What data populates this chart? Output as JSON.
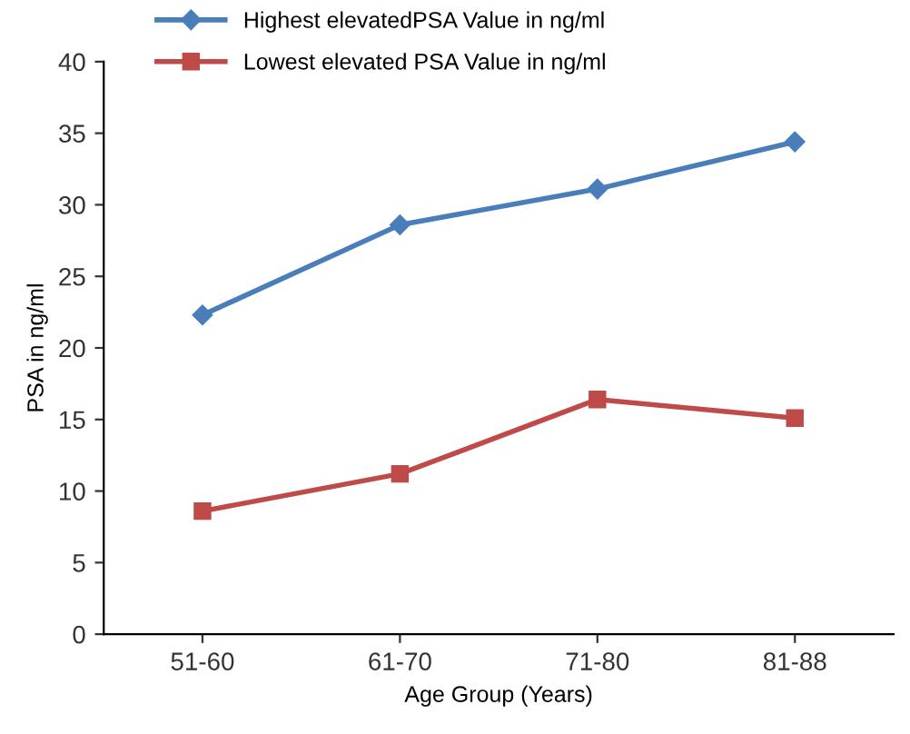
{
  "chart_data": {
    "type": "line",
    "xlabel": "Age Group (Years)",
    "ylabel": "PSA in ng/ml",
    "categories": [
      "51-60",
      "61-70",
      "71-80",
      "81-88"
    ],
    "series": [
      {
        "name": "Highest elevatedPSA Value in ng/ml",
        "color": "#4a7ebb",
        "marker": "diamond",
        "values": [
          22.3,
          28.6,
          31.1,
          34.4
        ]
      },
      {
        "name": "Lowest elevated PSA Value in ng/ml",
        "color": "#be4b48",
        "marker": "square",
        "values": [
          8.6,
          11.2,
          16.4,
          15.1
        ]
      }
    ],
    "ylim": [
      0,
      40
    ],
    "yticks": [
      0,
      5,
      10,
      15,
      20,
      25,
      30,
      35,
      40
    ],
    "grid": false,
    "legend": "top",
    "line_style": "solid"
  }
}
